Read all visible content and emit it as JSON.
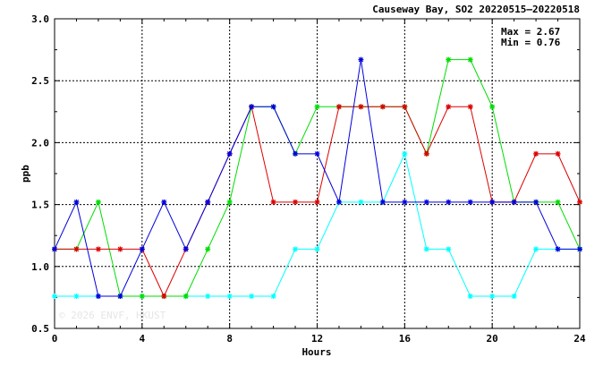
{
  "chart_data": {
    "type": "line",
    "title": "Causeway Bay, SO2 20220515–20220518",
    "xlabel": "Hours",
    "ylabel": "ppb",
    "xlim": [
      0,
      24
    ],
    "ylim": [
      0.5,
      3.0
    ],
    "xticks": [
      0,
      4,
      8,
      12,
      16,
      20,
      24
    ],
    "yticks": [
      0.5,
      1.0,
      1.5,
      2.0,
      2.5,
      3.0
    ],
    "ytick_labels": [
      "0.5",
      "1.0",
      "1.5",
      "2.0",
      "2.5",
      "3.0"
    ],
    "grid": true,
    "annotations": [
      "Max = 2.67",
      "Min = 0.76"
    ],
    "watermark": "© 2026  ENVF, HKUST",
    "x": [
      0,
      1,
      2,
      3,
      4,
      5,
      6,
      7,
      8,
      9,
      10,
      11,
      12,
      13,
      14,
      15,
      16,
      17,
      18,
      19,
      20,
      21,
      22,
      23,
      24
    ],
    "series": [
      {
        "color": "#0000dd",
        "values": [
          1.14,
          1.52,
          0.76,
          0.76,
          1.14,
          1.52,
          1.14,
          1.52,
          1.91,
          2.29,
          2.29,
          1.91,
          1.91,
          1.52,
          2.67,
          1.52,
          1.52,
          1.52,
          1.52,
          1.52,
          1.52,
          1.52,
          1.52,
          1.14,
          1.14
        ]
      },
      {
        "color": "#00dd00",
        "values": [
          1.14,
          1.14,
          1.52,
          0.76,
          0.76,
          0.76,
          0.76,
          1.14,
          1.52,
          2.29,
          2.29,
          1.91,
          2.29,
          2.29,
          2.29,
          2.29,
          2.29,
          1.91,
          2.67,
          2.67,
          2.29,
          1.52,
          1.52,
          1.52,
          1.14
        ]
      },
      {
        "color": "#dd0000",
        "values": [
          1.14,
          1.14,
          1.14,
          1.14,
          1.14,
          0.76,
          1.14,
          1.52,
          1.91,
          2.29,
          1.52,
          1.52,
          1.52,
          2.29,
          2.29,
          2.29,
          2.29,
          1.91,
          2.29,
          2.29,
          1.52,
          1.52,
          1.91,
          1.91,
          1.52
        ]
      },
      {
        "color": "#00ffff",
        "values": [
          0.76,
          0.76,
          0.76,
          0.76,
          0.76,
          0.76,
          0.76,
          0.76,
          0.76,
          0.76,
          0.76,
          1.14,
          1.14,
          1.52,
          1.52,
          1.52,
          1.91,
          1.14,
          1.14,
          0.76,
          0.76,
          0.76,
          1.14,
          1.14,
          1.14
        ]
      }
    ]
  }
}
